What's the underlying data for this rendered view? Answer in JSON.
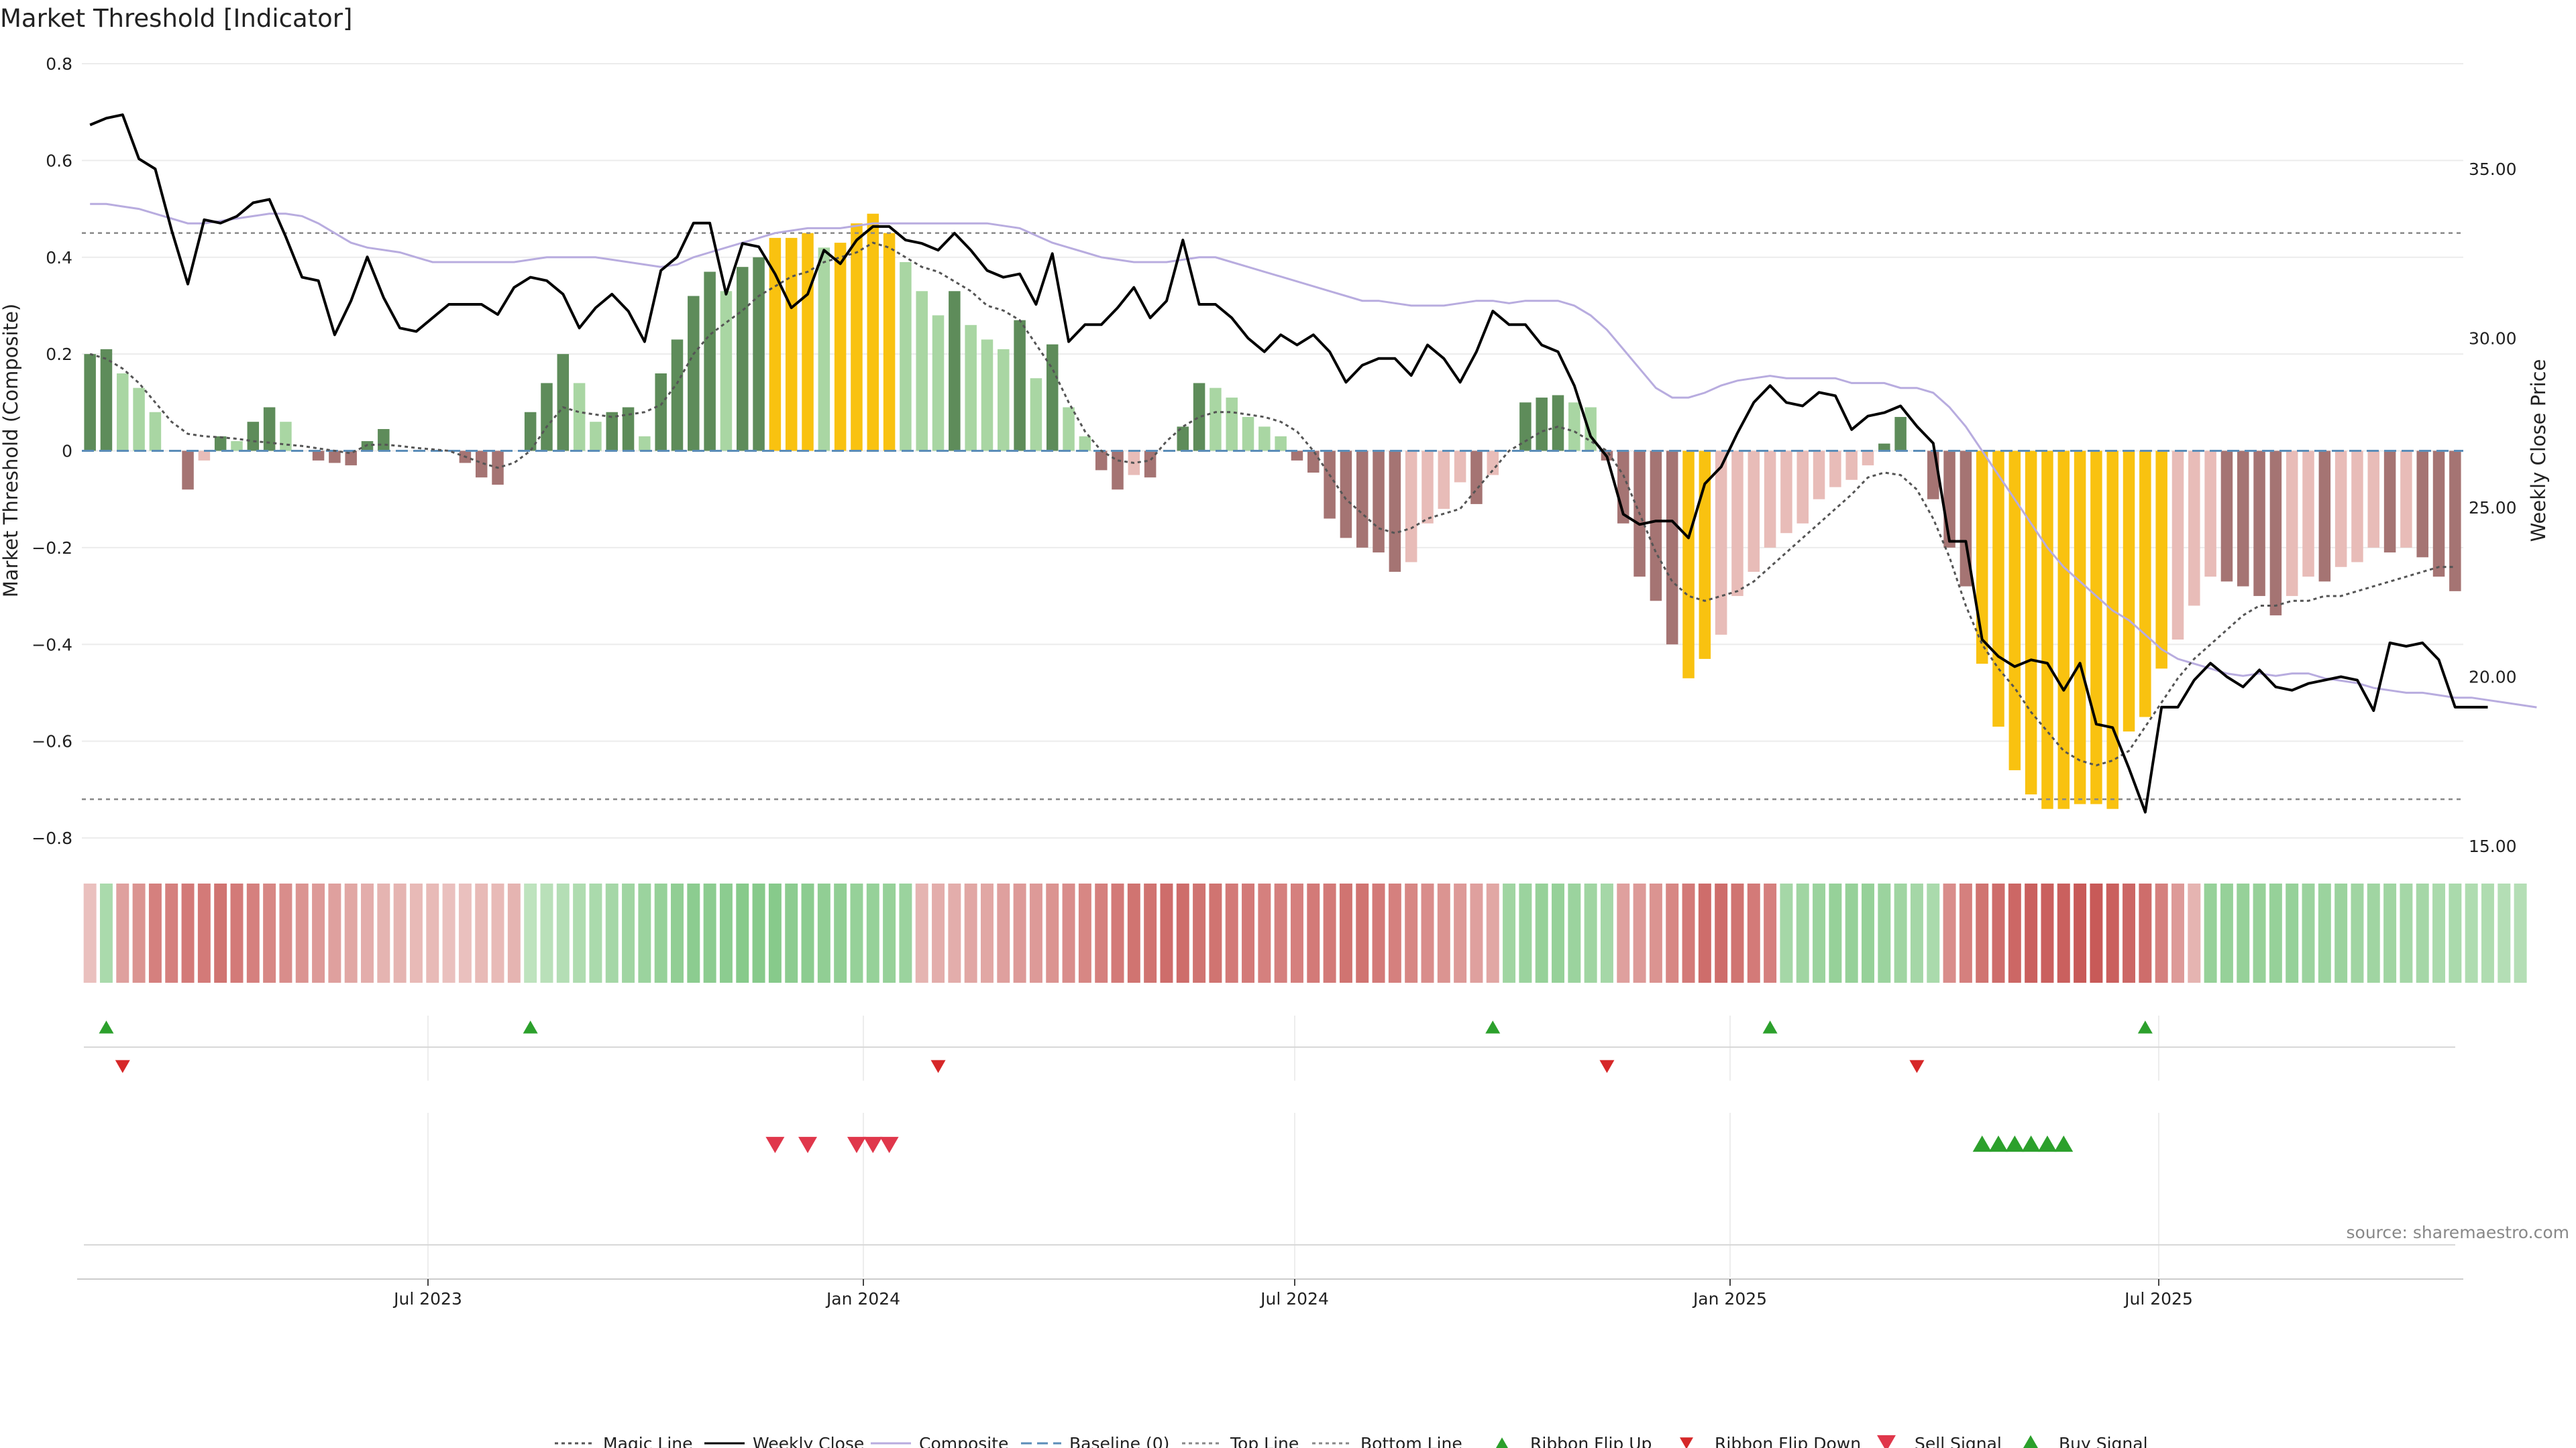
{
  "chart_data": {
    "type": "bar",
    "title": "Market Threshold [Indicator]",
    "ylabel": "Market Threshold (Composite)",
    "y2label": "Weekly Close Price",
    "source": "source: sharemaestro.com",
    "ylim": [
      -0.8,
      0.8
    ],
    "y2lim": [
      15.0,
      37.5
    ],
    "yticks": [
      "0.8",
      "0.6",
      "0.4",
      "0.2",
      "0",
      "−0.2",
      "−0.4",
      "−0.6",
      "−0.8"
    ],
    "y2ticks": [
      "35.00",
      "30.00",
      "25.00",
      "20.00",
      "15.00"
    ],
    "xticks": [
      "Jul 2023",
      "Jan 2024",
      "Jul 2024",
      "Jan 2025",
      "Jul 2025"
    ],
    "top_line": 0.45,
    "bottom_line": -0.72,
    "composite_bars": [
      0.2,
      0.21,
      0.16,
      0.13,
      0.08,
      0,
      -0.08,
      -0.02,
      0.03,
      0.02,
      0.06,
      0.09,
      0.06,
      0,
      -0.02,
      -0.025,
      -0.03,
      0.02,
      0.045,
      0,
      0,
      0,
      0,
      -0.025,
      -0.055,
      -0.07,
      0,
      0.08,
      0.14,
      0.2,
      0.14,
      0.06,
      0.08,
      0.09,
      0.03,
      0.16,
      0.23,
      0.32,
      0.37,
      0.33,
      0.38,
      0.4,
      0.44,
      0.44,
      0.45,
      0.42,
      0.43,
      0.47,
      0.49,
      0.45,
      0.39,
      0.33,
      0.28,
      0.33,
      0.26,
      0.23,
      0.21,
      0.27,
      0.15,
      0.22,
      0.09,
      0.03,
      -0.04,
      -0.08,
      -0.05,
      -0.055,
      0,
      0.05,
      0.14,
      0.13,
      0.11,
      0.07,
      0.05,
      0.03,
      -0.02,
      -0.045,
      -0.14,
      -0.18,
      -0.2,
      -0.21,
      -0.25,
      -0.23,
      -0.15,
      -0.12,
      -0.065,
      -0.11,
      -0.05,
      0,
      0.1,
      0.11,
      0.115,
      0.1,
      0.09,
      -0.02,
      -0.15,
      -0.26,
      -0.31,
      -0.4,
      -0.47,
      -0.43,
      -0.38,
      -0.3,
      -0.25,
      -0.2,
      -0.17,
      -0.15,
      -0.1,
      -0.075,
      -0.06,
      -0.03,
      0.015,
      0.07,
      0,
      -0.1,
      -0.2,
      -0.28,
      -0.44,
      -0.57,
      -0.66,
      -0.71,
      -0.74,
      -0.74,
      -0.73,
      -0.73,
      -0.74,
      -0.58,
      -0.55,
      -0.45,
      -0.39,
      -0.32,
      -0.26,
      -0.27,
      -0.28,
      -0.3,
      -0.34,
      -0.3,
      -0.26,
      -0.27,
      -0.24,
      -0.23,
      -0.2,
      -0.21,
      -0.2,
      -0.22,
      -0.26,
      -0.29
    ],
    "bar_colors": {
      "pos_dark": "#5e8c5a",
      "pos_light": "#a9d6a3",
      "neg_dark": "#a57473",
      "neg_light": "#e8bcb8",
      "highlight": "#f9c210"
    },
    "magic_line": [
      0.2,
      0.19,
      0.17,
      0.14,
      0.1,
      0.06,
      0.035,
      0.03,
      0.028,
      0.025,
      0.02,
      0.017,
      0.013,
      0.01,
      0.005,
      0.0,
      -0.005,
      0.012,
      0.013,
      0.01,
      0.006,
      0.003,
      0.0,
      -0.012,
      -0.025,
      -0.035,
      -0.025,
      0.0,
      0.05,
      0.09,
      0.08,
      0.075,
      0.07,
      0.075,
      0.08,
      0.095,
      0.14,
      0.2,
      0.24,
      0.265,
      0.29,
      0.32,
      0.34,
      0.36,
      0.37,
      0.39,
      0.4,
      0.41,
      0.43,
      0.42,
      0.4,
      0.38,
      0.37,
      0.35,
      0.33,
      0.3,
      0.29,
      0.27,
      0.22,
      0.17,
      0.1,
      0.04,
      0.0,
      -0.02,
      -0.025,
      -0.02,
      0.02,
      0.05,
      0.07,
      0.08,
      0.08,
      0.075,
      0.07,
      0.06,
      0.04,
      0.0,
      -0.05,
      -0.1,
      -0.13,
      -0.16,
      -0.17,
      -0.16,
      -0.14,
      -0.13,
      -0.12,
      -0.08,
      -0.04,
      0.0,
      0.02,
      0.04,
      0.05,
      0.04,
      0.02,
      0.0,
      -0.05,
      -0.13,
      -0.21,
      -0.27,
      -0.3,
      -0.31,
      -0.3,
      -0.29,
      -0.27,
      -0.24,
      -0.21,
      -0.18,
      -0.15,
      -0.12,
      -0.09,
      -0.055,
      -0.045,
      -0.05,
      -0.08,
      -0.14,
      -0.22,
      -0.32,
      -0.4,
      -0.45,
      -0.49,
      -0.54,
      -0.58,
      -0.62,
      -0.64,
      -0.65,
      -0.64,
      -0.62,
      -0.57,
      -0.52,
      -0.47,
      -0.43,
      -0.4,
      -0.37,
      -0.34,
      -0.32,
      -0.32,
      -0.31,
      -0.31,
      -0.3,
      -0.3,
      -0.29,
      -0.28,
      -0.27,
      -0.26,
      -0.25,
      -0.24,
      -0.24
    ],
    "composite_line": [
      0.51,
      0.51,
      0.505,
      0.5,
      0.49,
      0.48,
      0.47,
      0.47,
      0.475,
      0.48,
      0.485,
      0.49,
      0.49,
      0.485,
      0.47,
      0.45,
      0.43,
      0.42,
      0.415,
      0.41,
      0.4,
      0.39,
      0.39,
      0.39,
      0.39,
      0.39,
      0.39,
      0.395,
      0.4,
      0.4,
      0.4,
      0.4,
      0.395,
      0.39,
      0.385,
      0.38,
      0.385,
      0.4,
      0.41,
      0.42,
      0.43,
      0.44,
      0.45,
      0.455,
      0.46,
      0.46,
      0.46,
      0.465,
      0.47,
      0.47,
      0.47,
      0.47,
      0.47,
      0.47,
      0.47,
      0.47,
      0.465,
      0.46,
      0.445,
      0.43,
      0.42,
      0.41,
      0.4,
      0.395,
      0.39,
      0.39,
      0.39,
      0.395,
      0.4,
      0.4,
      0.39,
      0.38,
      0.37,
      0.36,
      0.35,
      0.34,
      0.33,
      0.32,
      0.31,
      0.31,
      0.305,
      0.3,
      0.3,
      0.3,
      0.305,
      0.31,
      0.31,
      0.305,
      0.31,
      0.31,
      0.31,
      0.3,
      0.28,
      0.25,
      0.21,
      0.17,
      0.13,
      0.11,
      0.11,
      0.12,
      0.135,
      0.145,
      0.15,
      0.155,
      0.15,
      0.15,
      0.15,
      0.15,
      0.14,
      0.14,
      0.14,
      0.13,
      0.13,
      0.12,
      0.09,
      0.05,
      0.0,
      -0.05,
      -0.1,
      -0.15,
      -0.2,
      -0.24,
      -0.27,
      -0.3,
      -0.33,
      -0.35,
      -0.38,
      -0.41,
      -0.43,
      -0.44,
      -0.45,
      -0.46,
      -0.465,
      -0.46,
      -0.465,
      -0.46,
      -0.46,
      -0.47,
      -0.475,
      -0.48,
      -0.49,
      -0.495,
      -0.5,
      -0.5,
      -0.505,
      -0.51,
      -0.51,
      -0.515,
      -0.52,
      -0.525,
      -0.53
    ],
    "weekly_close": [
      36.3,
      36.5,
      36.6,
      35.3,
      35.0,
      33.2,
      31.6,
      33.5,
      33.4,
      33.6,
      34.0,
      34.1,
      33.0,
      31.8,
      31.7,
      30.1,
      31.1,
      32.4,
      31.2,
      30.3,
      30.2,
      30.6,
      31.0,
      31.0,
      31.0,
      30.7,
      31.5,
      31.8,
      31.7,
      31.3,
      30.3,
      30.9,
      31.3,
      30.8,
      29.9,
      32.0,
      32.4,
      33.4,
      33.4,
      31.3,
      32.8,
      32.7,
      31.9,
      30.9,
      31.3,
      32.6,
      32.2,
      32.9,
      33.3,
      33.3,
      32.9,
      32.8,
      32.6,
      33.1,
      32.6,
      32.0,
      31.8,
      31.9,
      31.0,
      32.5,
      29.9,
      30.4,
      30.4,
      30.9,
      31.5,
      30.6,
      31.1,
      32.9,
      31.0,
      31.0,
      30.6,
      30.0,
      29.6,
      30.1,
      29.8,
      30.1,
      29.6,
      28.7,
      29.2,
      29.4,
      29.4,
      28.9,
      29.8,
      29.4,
      28.7,
      29.6,
      30.8,
      30.4,
      30.4,
      29.8,
      29.6,
      28.6,
      27.1,
      26.5,
      24.8,
      24.5,
      24.6,
      24.6,
      24.1,
      25.7,
      26.2,
      27.2,
      28.1,
      28.6,
      28.1,
      28.0,
      28.4,
      28.3,
      27.3,
      27.7,
      27.8,
      28.0,
      27.4,
      26.9,
      24.0,
      24.0,
      21.1,
      20.6,
      20.3,
      20.5,
      20.4,
      19.6,
      20.4,
      18.6,
      18.5,
      17.3,
      16.0,
      19.1,
      19.1,
      19.9,
      20.4,
      20.0,
      19.7,
      20.2,
      19.7,
      19.6,
      19.8,
      19.9,
      20.0,
      19.9,
      19.0,
      21.0,
      20.9,
      21.0,
      20.5,
      19.1,
      19.1,
      19.1
    ],
    "ribbon": [
      -0.2,
      0.5,
      -0.45,
      -0.55,
      -0.7,
      -0.7,
      -0.75,
      -0.75,
      -0.8,
      -0.75,
      -0.7,
      -0.65,
      -0.6,
      -0.55,
      -0.5,
      -0.45,
      -0.4,
      -0.35,
      -0.3,
      -0.3,
      -0.25,
      -0.25,
      -0.2,
      -0.2,
      -0.25,
      -0.25,
      -0.3,
      0.3,
      0.35,
      0.4,
      0.45,
      0.5,
      0.55,
      0.6,
      0.65,
      0.7,
      0.75,
      0.8,
      0.8,
      0.8,
      0.85,
      0.85,
      0.85,
      0.8,
      0.8,
      0.75,
      0.75,
      0.7,
      0.7,
      0.7,
      0.65,
      -0.3,
      -0.35,
      -0.35,
      -0.4,
      -0.4,
      -0.45,
      -0.5,
      -0.5,
      -0.55,
      -0.6,
      -0.65,
      -0.7,
      -0.75,
      -0.8,
      -0.8,
      -0.85,
      -0.85,
      -0.8,
      -0.8,
      -0.75,
      -0.75,
      -0.7,
      -0.7,
      -0.7,
      -0.75,
      -0.75,
      -0.8,
      -0.8,
      -0.75,
      -0.7,
      -0.65,
      -0.6,
      -0.55,
      -0.5,
      -0.45,
      -0.4,
      0.6,
      0.65,
      0.7,
      0.7,
      0.65,
      0.6,
      0.55,
      -0.45,
      -0.5,
      -0.55,
      -0.65,
      -0.75,
      -0.85,
      -0.85,
      -0.8,
      -0.75,
      -0.7,
      0.55,
      0.6,
      0.65,
      0.7,
      0.7,
      0.7,
      0.65,
      0.6,
      0.55,
      0.5,
      -0.6,
      -0.7,
      -0.8,
      -0.85,
      -0.9,
      -0.95,
      -0.95,
      -0.95,
      -1.0,
      -1.0,
      -0.95,
      -0.9,
      -0.85,
      -0.7,
      -0.5,
      -0.3,
      0.7,
      0.7,
      0.7,
      0.7,
      0.7,
      0.7,
      0.65,
      0.65,
      0.65,
      0.6,
      0.6,
      0.6,
      0.55,
      0.55,
      0.5,
      0.5,
      0.45,
      0.45,
      0.4,
      0.4
    ],
    "flip_up": [
      1,
      27,
      86,
      103,
      126
    ],
    "flip_down": [
      2,
      52,
      93,
      112
    ],
    "sell_signal": [
      42,
      44,
      47,
      48,
      49
    ],
    "buy_signal": [
      116,
      117,
      118,
      119,
      120,
      121
    ],
    "legend": [
      {
        "label": "Magic Line",
        "kind": "dotted-line",
        "color": "#555555"
      },
      {
        "label": "Weekly Close",
        "kind": "line",
        "color": "#000000"
      },
      {
        "label": "Composite",
        "kind": "line",
        "color": "#b8acdf"
      },
      {
        "label": "Baseline (0)",
        "kind": "dashed-line",
        "color": "#5b8db8"
      },
      {
        "label": "Top Line",
        "kind": "dotted-line",
        "color": "#888888"
      },
      {
        "label": "Bottom Line",
        "kind": "dotted-line",
        "color": "#888888"
      },
      {
        "label": "Ribbon Flip Up",
        "kind": "tri-up-small",
        "color": "#2ca02c"
      },
      {
        "label": "Ribbon Flip Down",
        "kind": "tri-down-small",
        "color": "#d62728"
      },
      {
        "label": "Sell Signal",
        "kind": "tri-down",
        "color": "#e0374b"
      },
      {
        "label": "Buy Signal",
        "kind": "tri-up",
        "color": "#2ca02c"
      }
    ]
  }
}
